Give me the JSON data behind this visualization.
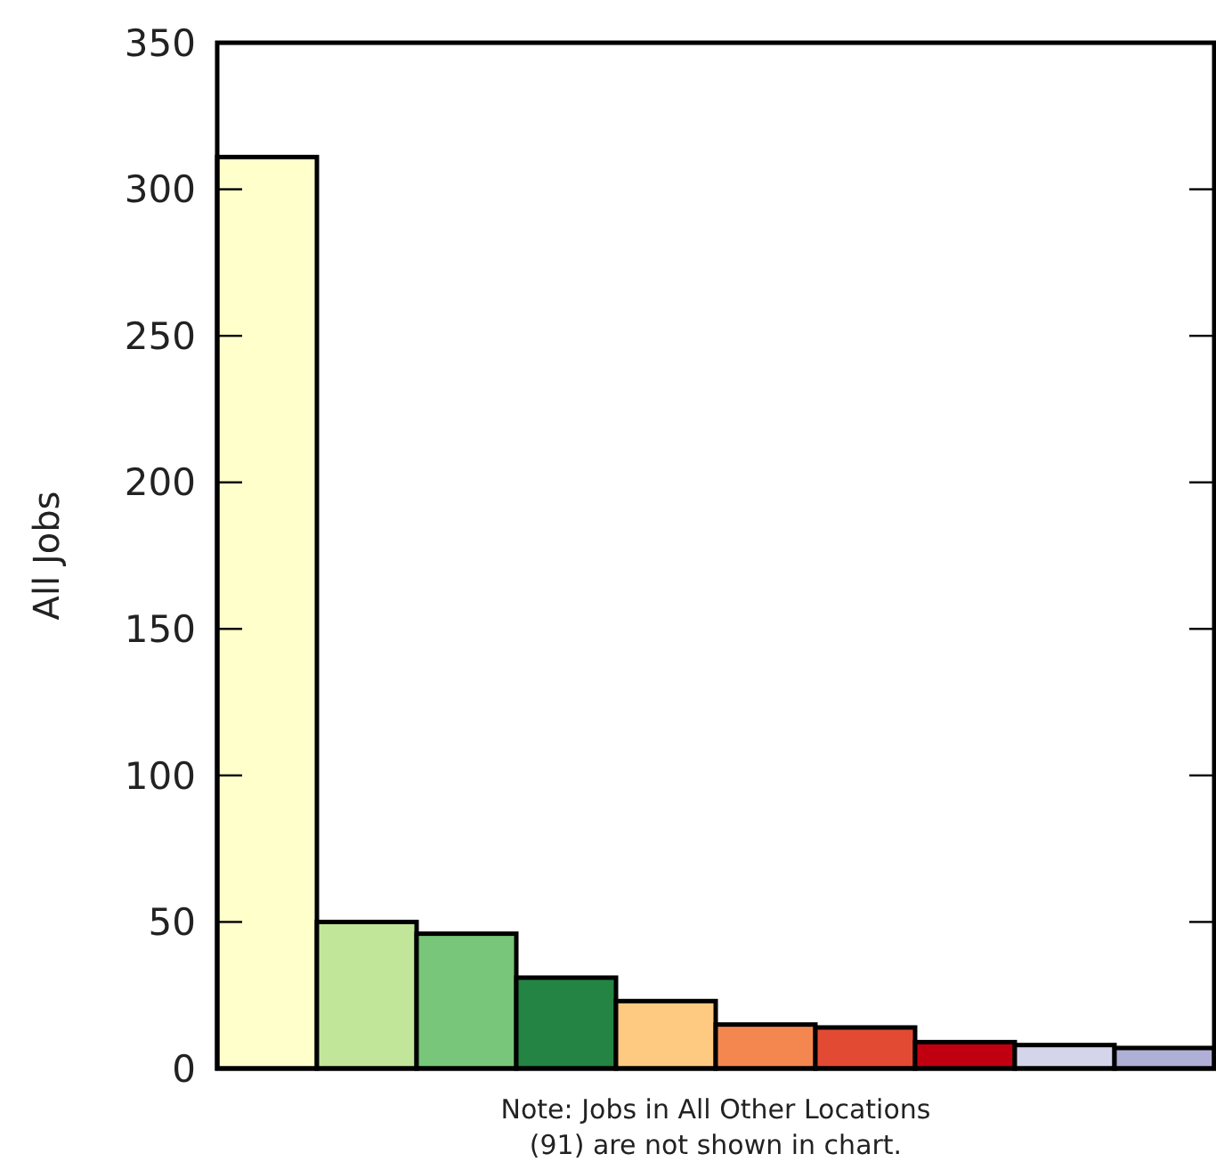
{
  "chart_data": {
    "type": "bar",
    "ylabel": "All Jobs",
    "categories": [
      null,
      null,
      null,
      null,
      null,
      null,
      null,
      null,
      null,
      null
    ],
    "values": [
      311,
      50,
      46,
      31,
      23,
      15,
      14,
      9,
      8,
      7
    ],
    "colors": [
      "#ffffcc",
      "#c2e699",
      "#78c679",
      "#238443",
      "#fec980",
      "#f4874f",
      "#e34a33",
      "#c00010",
      "#d4d4ea",
      "#b0b0d6"
    ],
    "ylim": [
      0,
      350
    ],
    "yticks": [
      0,
      50,
      100,
      150,
      200,
      250,
      300,
      350
    ],
    "annotations": [
      "Note: Jobs in All Other Locations\n(91) are not shown in chart."
    ]
  }
}
